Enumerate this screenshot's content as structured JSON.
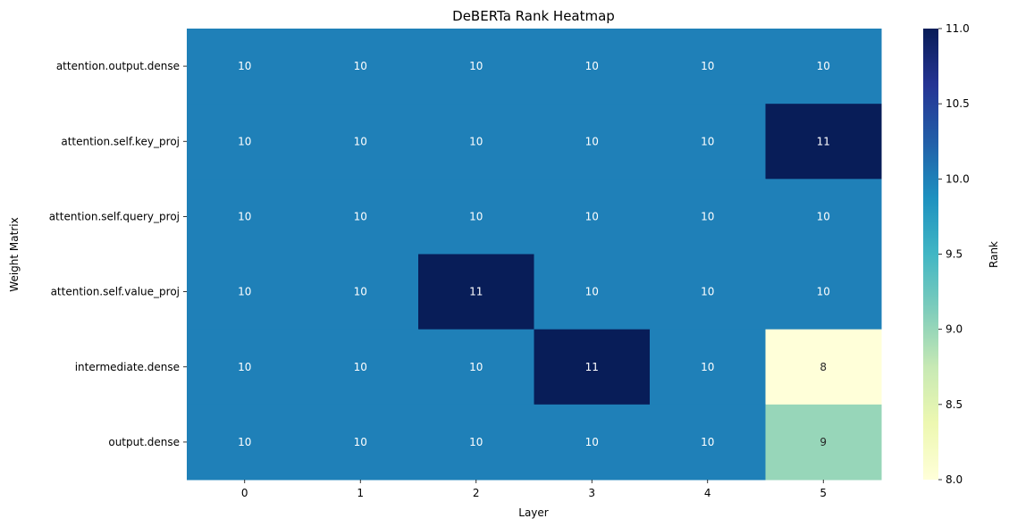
{
  "chart_data": {
    "type": "heatmap",
    "title": "DeBERTa Rank Heatmap",
    "xlabel": "Layer",
    "ylabel": "Weight Matrix",
    "x_categories": [
      "0",
      "1",
      "2",
      "3",
      "4",
      "5"
    ],
    "y_categories": [
      "attention.output.dense",
      "attention.self.key_proj",
      "attention.self.query_proj",
      "attention.self.value_proj",
      "intermediate.dense",
      "output.dense"
    ],
    "values": [
      [
        10,
        10,
        10,
        10,
        10,
        10
      ],
      [
        10,
        10,
        10,
        10,
        10,
        11
      ],
      [
        10,
        10,
        10,
        10,
        10,
        10
      ],
      [
        10,
        10,
        11,
        10,
        10,
        10
      ],
      [
        10,
        10,
        10,
        11,
        10,
        8
      ],
      [
        10,
        10,
        10,
        10,
        10,
        9
      ]
    ],
    "colormap": "YlGnBu",
    "colorbar": {
      "label": "Rank",
      "range": [
        8.0,
        11.0
      ],
      "ticks": [
        "8.0",
        "8.5",
        "9.0",
        "9.5",
        "10.0",
        "10.5",
        "11.0"
      ]
    },
    "annotations": true,
    "grid": false
  }
}
